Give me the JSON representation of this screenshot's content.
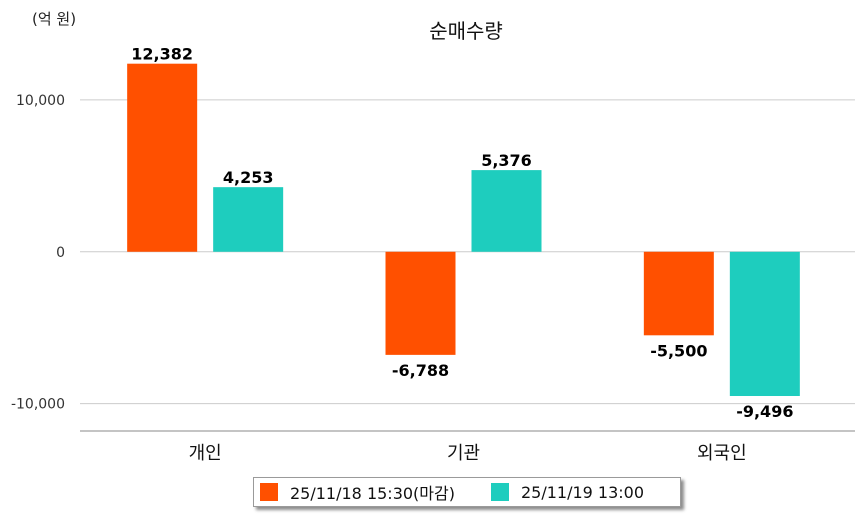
{
  "chart_data": {
    "type": "bar",
    "title": "순매수량",
    "unit_label": "(억 원)",
    "categories": [
      "개인",
      "기관",
      "외국인"
    ],
    "series": [
      {
        "name": "25/11/18 15:30(마감)",
        "color": "#FF5000",
        "values": [
          12382,
          -6788,
          -5500
        ]
      },
      {
        "name": "25/11/19 13:00",
        "color": "#1ECDBE",
        "values": [
          4253,
          5376,
          -9496
        ]
      }
    ],
    "value_labels": [
      [
        "12,382",
        "-6,788",
        "-5,500"
      ],
      [
        "4,253",
        "5,376",
        "-9,496"
      ]
    ],
    "y_ticks": [
      10000,
      0,
      -10000
    ],
    "y_tick_labels": [
      "10,000",
      "0",
      "-10,000"
    ],
    "ylim": [
      -11800,
      14600
    ],
    "xlabel": "",
    "ylabel": "",
    "grid": true,
    "legend_position": "bottom"
  }
}
